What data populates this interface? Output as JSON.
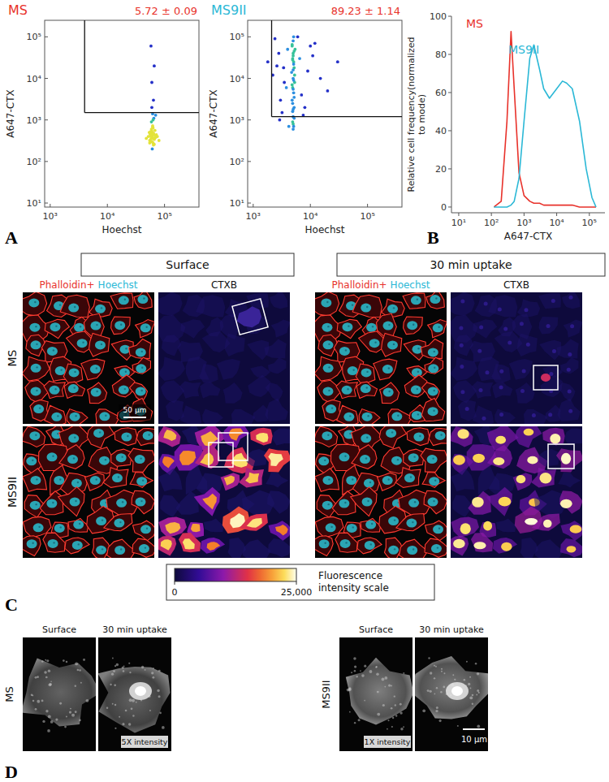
{
  "panel_labels": [
    "A",
    "B",
    "C",
    "D"
  ],
  "chart_data": [
    {
      "type": "scatter",
      "log": true,
      "annotation": "5.72 ± 0.09",
      "xlabel": "Hoechst",
      "ylabel": "A647-CTX",
      "xlim": [
        800,
        400000
      ],
      "ylim": [
        8,
        250000
      ],
      "xticks": [
        {
          "value": 1000,
          "label": "10³"
        },
        {
          "value": 10000,
          "label": "10⁴"
        },
        {
          "value": 100000,
          "label": "10⁵"
        }
      ],
      "yticks": [
        {
          "value": 10,
          "label": "10¹"
        },
        {
          "value": 100,
          "label": "10²"
        },
        {
          "value": 1000,
          "label": "10³"
        },
        {
          "value": 10000,
          "label": "10⁴"
        },
        {
          "value": 100000,
          "label": "10⁵"
        }
      ],
      "gate": {
        "x": 4000,
        "y": 1500
      },
      "x": [
        62000,
        58000,
        65000,
        60000,
        55000,
        70000,
        63000,
        57000,
        61000,
        66000,
        59000,
        64000,
        52000,
        72000,
        68000,
        60000,
        56000,
        63000,
        67000,
        58000,
        61000,
        54000,
        75000,
        62000,
        59000,
        65000,
        48000,
        80000,
        60000,
        63000,
        57000,
        66000,
        61000,
        64000,
        58000,
        60000,
        62000,
        69000,
        55000,
        64000,
        60000,
        66000,
        58000,
        70000,
        62000
      ],
      "series": [
        {
          "name": "MS",
          "color": "#e8322b",
          "values": [
            400,
            350,
            450,
            480,
            320,
            380,
            280,
            520,
            420,
            340,
            600,
            250,
            400,
            440,
            560,
            300,
            460,
            640,
            360,
            400,
            200,
            500,
            400,
            720,
            900,
            1100,
            360,
            320,
            2000,
            1000,
            440,
            260,
            360,
            480,
            400,
            540,
            1400,
            420,
            280,
            3000,
            8000,
            20000,
            60000,
            1300,
            680
          ]
        }
      ]
    },
    {
      "type": "scatter",
      "log": true,
      "annotation": "89.23 ± 1.14",
      "xlabel": "Hoechst",
      "ylabel": "A647-CTX",
      "xlim": [
        800,
        400000
      ],
      "ylim": [
        8,
        250000
      ],
      "xticks": [
        {
          "value": 1000,
          "label": "10³"
        },
        {
          "value": 10000,
          "label": "10⁴"
        },
        {
          "value": 100000,
          "label": "10⁵"
        }
      ],
      "yticks": [
        {
          "value": 10,
          "label": "10¹"
        },
        {
          "value": 100,
          "label": "10²"
        },
        {
          "value": 1000,
          "label": "10³"
        },
        {
          "value": 10000,
          "label": "10⁴"
        },
        {
          "value": 100000,
          "label": "10⁵"
        }
      ],
      "gate": {
        "x": 2100,
        "y": 1200
      },
      "x": [
        5000,
        5200,
        4800,
        5100,
        4900,
        5300,
        5000,
        4700,
        5200,
        5100,
        4900,
        5000,
        5400,
        4800,
        5000,
        5100,
        4900,
        5200,
        5000,
        4800,
        5300,
        5000,
        5100,
        4900,
        5000,
        5200,
        4800,
        5100,
        5000,
        4900,
        3000,
        3500,
        2600,
        4000,
        2200,
        3200,
        2800,
        3800,
        1800,
        2400,
        7000,
        9000,
        6500,
        12000,
        8000,
        15000,
        20000,
        6000,
        30000,
        10000,
        5000,
        5100,
        4900,
        5200,
        5000,
        3400,
        2900,
        4200,
        7500,
        11000
      ],
      "series": [
        {
          "name": "MS9II",
          "color": "#2bb8d6",
          "values": [
            1200,
            2000,
            3000,
            4500,
            6000,
            8000,
            10000,
            14000,
            18000,
            25000,
            30000,
            40000,
            50000,
            65000,
            80000,
            100000,
            2500,
            3500,
            5500,
            7000,
            12000,
            16000,
            22000,
            28000,
            35000,
            45000,
            60000,
            9000,
            1800,
            1600,
            3000,
            8000,
            20000,
            50000,
            12000,
            1500,
            40000,
            6000,
            25000,
            90000,
            4000,
            15000,
            30000,
            70000,
            2000,
            10000,
            5000,
            100000,
            25000,
            60000,
            800,
            700,
            900,
            1100,
            600,
            18000,
            1000,
            700,
            1300,
            35000
          ]
        }
      ]
    },
    {
      "type": "line",
      "log": "x",
      "legend": "upper left",
      "xlabel": "A647-CTX",
      "ylabel": [
        "Relative cell frequency(normalized",
        "to mode)"
      ],
      "xlim": [
        6,
        300000
      ],
      "ylim": [
        -3,
        100
      ],
      "xticks": [
        {
          "value": 10,
          "label": "10¹"
        },
        {
          "value": 100,
          "label": "10²"
        },
        {
          "value": 1000,
          "label": "10³"
        },
        {
          "value": 10000,
          "label": "10⁴"
        },
        {
          "value": 100000,
          "label": "10⁵"
        }
      ],
      "yticks": [
        0,
        20,
        40,
        60,
        80,
        100
      ],
      "x": [
        120,
        200,
        300,
        400,
        500,
        700,
        1000,
        1500,
        2000,
        3000,
        4000,
        6000,
        10000,
        15000,
        20000,
        30000,
        50000,
        80000,
        120000,
        160000
      ],
      "series": [
        {
          "name": "MS",
          "color": "#e8322b",
          "values": [
            0,
            3,
            45,
            92,
            62,
            18,
            6,
            3,
            2,
            2,
            1,
            1,
            1,
            1,
            1,
            1,
            0,
            0,
            0,
            0
          ]
        },
        {
          "name": "MS9II",
          "color": "#2bb8d6",
          "values": [
            0,
            0,
            0,
            1,
            3,
            15,
            45,
            78,
            85,
            72,
            62,
            57,
            62,
            66,
            65,
            62,
            45,
            20,
            5,
            0
          ]
        }
      ]
    }
  ],
  "panel_c": {
    "columns": [
      "Surface",
      "30 min uptake"
    ],
    "rows": [
      "MS",
      "MS9II"
    ],
    "stain_labels": [
      "Phalloidin+",
      "Hoechst"
    ],
    "ctx_label": "CTXB",
    "scale_bar": "50 μm",
    "colorbar": {
      "title": [
        "Fluorescence",
        "intensity scale"
      ],
      "range": [
        0,
        25000
      ],
      "ticks": [
        0,
        {
          "value": 25000,
          "label": "25,000"
        }
      ]
    }
  },
  "panel_d": {
    "columns": [
      "Surface",
      "30 min uptake"
    ],
    "rows": [
      "MS",
      "MS9II"
    ],
    "intensity": [
      "5X intensity",
      "1X intensity"
    ],
    "scale_bar": "10 μm"
  }
}
